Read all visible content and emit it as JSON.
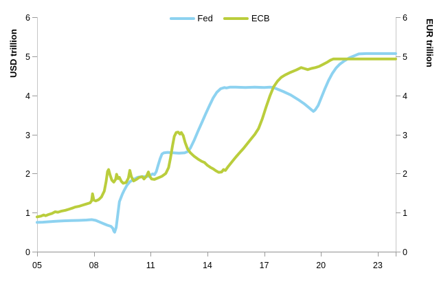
{
  "chart_data": {
    "type": "line",
    "title": "",
    "legend_position": "top-center",
    "grid": false,
    "colors": {
      "fed": "#8DD2F0",
      "ecb": "#BACD3C",
      "y_axis_line": "#C6C6C6",
      "x_axis_line": "#909090",
      "tick": "#9A9A9A",
      "label": "#000000"
    },
    "left_axis": {
      "label": "USD trillion",
      "range": [
        0,
        6
      ],
      "ticks": [
        0,
        1,
        2,
        3,
        4,
        5,
        6
      ]
    },
    "right_axis": {
      "label": "EUR trillion",
      "range": [
        0,
        6
      ],
      "ticks": [
        0,
        1,
        2,
        3,
        4,
        5,
        6
      ]
    },
    "x_axis": {
      "range": [
        2005,
        2023.95
      ],
      "tick_years": [
        2005,
        2008,
        2011,
        2014,
        2017,
        2020,
        2023
      ],
      "tick_labels": [
        "05",
        "08",
        "11",
        "14",
        "17",
        "20",
        "23"
      ]
    },
    "series": [
      {
        "name": "Fed",
        "axis": "left",
        "color_key": "fed",
        "points": [
          [
            2005.0,
            0.75
          ],
          [
            2005.3,
            0.755
          ],
          [
            2005.6,
            0.765
          ],
          [
            2006.0,
            0.78
          ],
          [
            2006.4,
            0.79
          ],
          [
            2006.8,
            0.795
          ],
          [
            2007.2,
            0.8
          ],
          [
            2007.6,
            0.81
          ],
          [
            2007.9,
            0.82
          ],
          [
            2008.1,
            0.8
          ],
          [
            2008.3,
            0.76
          ],
          [
            2008.5,
            0.72
          ],
          [
            2008.7,
            0.68
          ],
          [
            2008.9,
            0.65
          ],
          [
            2009.0,
            0.6
          ],
          [
            2009.05,
            0.53
          ],
          [
            2009.1,
            0.5
          ],
          [
            2009.18,
            0.62
          ],
          [
            2009.25,
            0.9
          ],
          [
            2009.35,
            1.28
          ],
          [
            2009.5,
            1.47
          ],
          [
            2009.6,
            1.57
          ],
          [
            2009.75,
            1.7
          ],
          [
            2009.9,
            1.79
          ],
          [
            2010.1,
            1.85
          ],
          [
            2010.3,
            1.9
          ],
          [
            2010.5,
            1.92
          ],
          [
            2010.7,
            1.92
          ],
          [
            2010.9,
            1.93
          ],
          [
            2011.0,
            1.96
          ],
          [
            2011.1,
            1.99
          ],
          [
            2011.2,
            1.97
          ],
          [
            2011.3,
            2.05
          ],
          [
            2011.4,
            2.22
          ],
          [
            2011.5,
            2.38
          ],
          [
            2011.6,
            2.5
          ],
          [
            2011.7,
            2.53
          ],
          [
            2011.9,
            2.54
          ],
          [
            2012.2,
            2.53
          ],
          [
            2012.5,
            2.52
          ],
          [
            2012.8,
            2.53
          ],
          [
            2012.95,
            2.56
          ],
          [
            2013.1,
            2.65
          ],
          [
            2013.3,
            2.85
          ],
          [
            2013.5,
            3.08
          ],
          [
            2013.7,
            3.3
          ],
          [
            2013.9,
            3.52
          ],
          [
            2014.1,
            3.73
          ],
          [
            2014.3,
            3.93
          ],
          [
            2014.5,
            4.08
          ],
          [
            2014.7,
            4.17
          ],
          [
            2014.9,
            4.2
          ],
          [
            2015.0,
            4.19
          ],
          [
            2015.2,
            4.21
          ],
          [
            2015.5,
            4.21
          ],
          [
            2016.0,
            4.2
          ],
          [
            2016.5,
            4.21
          ],
          [
            2017.0,
            4.2
          ],
          [
            2017.3,
            4.21
          ],
          [
            2017.5,
            4.2
          ],
          [
            2017.7,
            4.16
          ],
          [
            2018.0,
            4.1
          ],
          [
            2018.4,
            4.01
          ],
          [
            2018.8,
            3.89
          ],
          [
            2019.1,
            3.79
          ],
          [
            2019.3,
            3.71
          ],
          [
            2019.5,
            3.63
          ],
          [
            2019.6,
            3.59
          ],
          [
            2019.7,
            3.63
          ],
          [
            2019.85,
            3.74
          ],
          [
            2020.0,
            3.92
          ],
          [
            2020.2,
            4.16
          ],
          [
            2020.4,
            4.38
          ],
          [
            2020.6,
            4.56
          ],
          [
            2020.8,
            4.7
          ],
          [
            2021.0,
            4.8
          ],
          [
            2021.2,
            4.87
          ],
          [
            2021.5,
            4.96
          ],
          [
            2021.8,
            5.02
          ],
          [
            2022.0,
            5.06
          ],
          [
            2022.4,
            5.07
          ],
          [
            2022.8,
            5.07
          ],
          [
            2023.2,
            5.07
          ],
          [
            2023.6,
            5.07
          ],
          [
            2023.95,
            5.07
          ]
        ]
      },
      {
        "name": "ECB",
        "axis": "right",
        "color_key": "ecb",
        "points": [
          [
            2005.0,
            0.89
          ],
          [
            2005.2,
            0.91
          ],
          [
            2005.35,
            0.94
          ],
          [
            2005.45,
            0.92
          ],
          [
            2005.6,
            0.95
          ],
          [
            2005.8,
            0.98
          ],
          [
            2005.95,
            1.02
          ],
          [
            2006.1,
            1.01
          ],
          [
            2006.3,
            1.04
          ],
          [
            2006.5,
            1.06
          ],
          [
            2006.7,
            1.09
          ],
          [
            2006.9,
            1.12
          ],
          [
            2007.0,
            1.14
          ],
          [
            2007.2,
            1.16
          ],
          [
            2007.4,
            1.19
          ],
          [
            2007.6,
            1.22
          ],
          [
            2007.8,
            1.25
          ],
          [
            2007.88,
            1.3
          ],
          [
            2007.93,
            1.48
          ],
          [
            2008.0,
            1.32
          ],
          [
            2008.1,
            1.3
          ],
          [
            2008.25,
            1.33
          ],
          [
            2008.4,
            1.4
          ],
          [
            2008.55,
            1.55
          ],
          [
            2008.65,
            1.8
          ],
          [
            2008.72,
            2.05
          ],
          [
            2008.78,
            2.1
          ],
          [
            2008.85,
            1.97
          ],
          [
            2008.95,
            1.83
          ],
          [
            2009.05,
            1.78
          ],
          [
            2009.15,
            1.85
          ],
          [
            2009.2,
            1.98
          ],
          [
            2009.28,
            1.87
          ],
          [
            2009.35,
            1.9
          ],
          [
            2009.45,
            1.8
          ],
          [
            2009.55,
            1.75
          ],
          [
            2009.7,
            1.77
          ],
          [
            2009.82,
            1.88
          ],
          [
            2009.9,
            2.08
          ],
          [
            2009.98,
            1.92
          ],
          [
            2010.1,
            1.81
          ],
          [
            2010.25,
            1.85
          ],
          [
            2010.4,
            1.9
          ],
          [
            2010.55,
            1.92
          ],
          [
            2010.65,
            1.86
          ],
          [
            2010.78,
            1.93
          ],
          [
            2010.88,
            2.04
          ],
          [
            2010.95,
            1.93
          ],
          [
            2011.05,
            1.86
          ],
          [
            2011.2,
            1.85
          ],
          [
            2011.4,
            1.89
          ],
          [
            2011.6,
            1.93
          ],
          [
            2011.8,
            2.0
          ],
          [
            2011.95,
            2.15
          ],
          [
            2012.05,
            2.4
          ],
          [
            2012.15,
            2.7
          ],
          [
            2012.25,
            2.95
          ],
          [
            2012.35,
            3.05
          ],
          [
            2012.45,
            3.06
          ],
          [
            2012.55,
            3.01
          ],
          [
            2012.62,
            3.05
          ],
          [
            2012.72,
            2.97
          ],
          [
            2012.82,
            2.8
          ],
          [
            2012.95,
            2.63
          ],
          [
            2013.1,
            2.53
          ],
          [
            2013.3,
            2.44
          ],
          [
            2013.5,
            2.37
          ],
          [
            2013.7,
            2.31
          ],
          [
            2013.85,
            2.28
          ],
          [
            2014.0,
            2.21
          ],
          [
            2014.15,
            2.16
          ],
          [
            2014.3,
            2.12
          ],
          [
            2014.45,
            2.07
          ],
          [
            2014.6,
            2.03
          ],
          [
            2014.75,
            2.04
          ],
          [
            2014.85,
            2.1
          ],
          [
            2014.95,
            2.08
          ],
          [
            2015.1,
            2.18
          ],
          [
            2015.3,
            2.3
          ],
          [
            2015.5,
            2.42
          ],
          [
            2015.7,
            2.53
          ],
          [
            2015.9,
            2.64
          ],
          [
            2016.1,
            2.76
          ],
          [
            2016.3,
            2.88
          ],
          [
            2016.5,
            3.0
          ],
          [
            2016.7,
            3.15
          ],
          [
            2016.9,
            3.4
          ],
          [
            2017.1,
            3.7
          ],
          [
            2017.3,
            3.98
          ],
          [
            2017.5,
            4.22
          ],
          [
            2017.7,
            4.36
          ],
          [
            2017.9,
            4.46
          ],
          [
            2018.1,
            4.52
          ],
          [
            2018.4,
            4.59
          ],
          [
            2018.7,
            4.65
          ],
          [
            2018.95,
            4.71
          ],
          [
            2019.1,
            4.69
          ],
          [
            2019.3,
            4.66
          ],
          [
            2019.5,
            4.69
          ],
          [
            2019.7,
            4.71
          ],
          [
            2019.9,
            4.74
          ],
          [
            2020.1,
            4.79
          ],
          [
            2020.3,
            4.84
          ],
          [
            2020.5,
            4.9
          ],
          [
            2020.65,
            4.93
          ],
          [
            2021.0,
            4.93
          ],
          [
            2021.5,
            4.93
          ],
          [
            2022.0,
            4.93
          ],
          [
            2022.5,
            4.93
          ],
          [
            2023.0,
            4.93
          ],
          [
            2023.5,
            4.93
          ],
          [
            2023.95,
            4.93
          ]
        ]
      }
    ]
  }
}
